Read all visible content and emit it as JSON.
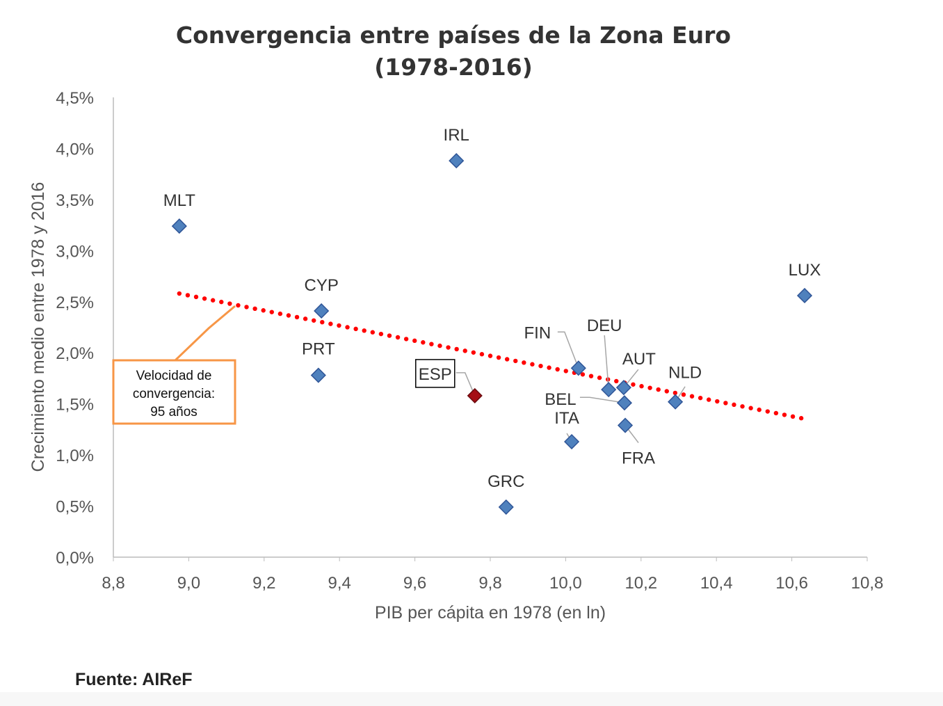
{
  "chart_data": {
    "type": "scatter",
    "title": "Convergencia entre países de la Zona Euro",
    "subtitle": "(1978-2016)",
    "xlabel": "PIB per cápita en 1978 (en ln)",
    "ylabel": "Crecimiento medio entre 1978 y 2016",
    "xlim": [
      8.8,
      10.8
    ],
    "ylim": [
      0,
      4.5
    ],
    "xticks": [
      "8,8",
      "9,0",
      "9,2",
      "9,4",
      "9,6",
      "9,8",
      "10,0",
      "10,2",
      "10,4",
      "10,6",
      "10,8"
    ],
    "yticks": [
      "0,0%",
      "0,5%",
      "1,0%",
      "1,5%",
      "2,0%",
      "2,5%",
      "3,0%",
      "3,5%",
      "4,0%",
      "4,5%"
    ],
    "grid": false,
    "point_color": "#4f81bd",
    "highlight_color": "#a50f15",
    "trend_color": "#ff0000",
    "annotation_color": "#f79646",
    "points": [
      {
        "label": "MLT",
        "x": 8.975,
        "y": 3.24
      },
      {
        "label": "IRL",
        "x": 9.71,
        "y": 3.88
      },
      {
        "label": "CYP",
        "x": 9.352,
        "y": 2.41
      },
      {
        "label": "PRT",
        "x": 9.344,
        "y": 1.78
      },
      {
        "label": "ESP",
        "x": 9.759,
        "y": 1.58,
        "highlight": true
      },
      {
        "label": "GRC",
        "x": 9.842,
        "y": 0.49
      },
      {
        "label": "FIN",
        "x": 10.034,
        "y": 1.85
      },
      {
        "label": "DEU",
        "x": 10.114,
        "y": 1.64
      },
      {
        "label": "AUT",
        "x": 10.154,
        "y": 1.66
      },
      {
        "label": "BEL",
        "x": 10.156,
        "y": 1.51
      },
      {
        "label": "FRA",
        "x": 10.158,
        "y": 1.29
      },
      {
        "label": "ITA",
        "x": 10.016,
        "y": 1.13
      },
      {
        "label": "NLD",
        "x": 10.291,
        "y": 1.52
      },
      {
        "label": "LUX",
        "x": 10.634,
        "y": 2.56
      }
    ],
    "trendline": {
      "x": [
        8.975,
        10.625
      ],
      "y": [
        2.58,
        1.36
      ]
    },
    "annotation": {
      "lines": [
        "Velocidad de",
        "convergencia:",
        "95 años"
      ]
    }
  },
  "source": "Fuente: AIReF"
}
